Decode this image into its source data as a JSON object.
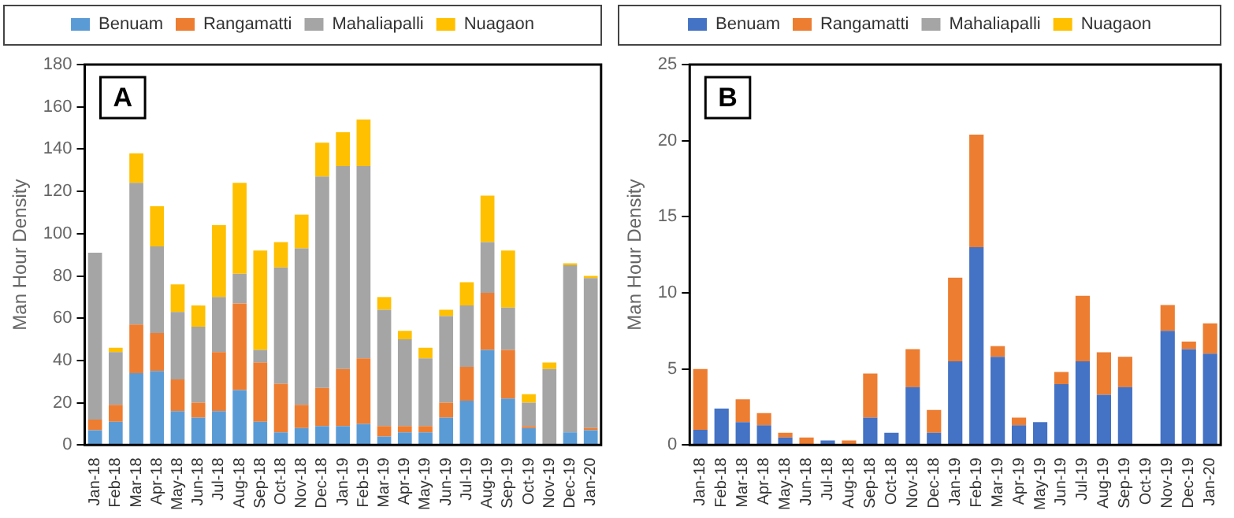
{
  "chart_data": [
    {
      "type": "bar",
      "stacked": true,
      "ylabel": "Man Hour Density",
      "annotations": [
        "A"
      ],
      "legend": "top",
      "grid": false,
      "ylim": [
        0,
        180
      ],
      "yticks": [
        0,
        20,
        40,
        60,
        80,
        100,
        120,
        140,
        160,
        180
      ],
      "categories": [
        "Jan-18",
        "Feb-18",
        "Mar-18",
        "Apr-18",
        "May-18",
        "Jun-18",
        "Jul-18",
        "Aug-18",
        "Sep-18",
        "Oct-18",
        "Nov-18",
        "Dec-18",
        "Jan-19",
        "Feb-19",
        "Mar-19",
        "Apr-19",
        "May-19",
        "Jun-19",
        "Jul-19",
        "Aug-19",
        "Sep-19",
        "Oct-19",
        "Nov-19",
        "Dec-19",
        "Jan-20"
      ],
      "series": [
        {
          "name": "Benuam",
          "color": "#5b9bd5",
          "values": [
            7,
            11,
            34,
            35,
            16,
            13,
            16,
            26,
            11,
            6,
            8,
            9,
            9,
            10,
            4,
            6,
            6,
            13,
            21,
            45,
            22,
            8,
            0,
            6,
            7
          ]
        },
        {
          "name": "Rangamatti",
          "color": "#ed7d31",
          "values": [
            5,
            8,
            23,
            18,
            15,
            7,
            28,
            41,
            28,
            23,
            11,
            18,
            27,
            31,
            5,
            3,
            3,
            7,
            16,
            27,
            23,
            1,
            0,
            0,
            1
          ]
        },
        {
          "name": "Mahaliapalli",
          "color": "#a5a5a5",
          "values": [
            79,
            25,
            67,
            41,
            32,
            36,
            26,
            14,
            6,
            55,
            74,
            100,
            96,
            91,
            55,
            41,
            32,
            41,
            29,
            24,
            20,
            11,
            36,
            79,
            71
          ]
        },
        {
          "name": "Nuagaon",
          "color": "#ffc000",
          "values": [
            0,
            2,
            14,
            19,
            13,
            10,
            34,
            43,
            47,
            12,
            16,
            16,
            16,
            22,
            6,
            4,
            5,
            3,
            11,
            22,
            27,
            4,
            3,
            1,
            1
          ]
        }
      ]
    },
    {
      "type": "bar",
      "stacked": true,
      "ylabel": "Man Hour Density",
      "annotations": [
        "B"
      ],
      "legend": "top",
      "grid": false,
      "ylim": [
        0,
        25
      ],
      "yticks": [
        0,
        5,
        10,
        15,
        20,
        25
      ],
      "categories": [
        "Jan-18",
        "Feb-18",
        "Mar-18",
        "Apr-18",
        "May-18",
        "Jun-18",
        "Jul-18",
        "Aug-18",
        "Sep-18",
        "Oct-18",
        "Nov-18",
        "Dec-18",
        "Jan-19",
        "Feb-19",
        "Mar-19",
        "Apr-19",
        "May-19",
        "Jun-19",
        "Jul-19",
        "Aug-19",
        "Sep-19",
        "Oct-19",
        "Nov-19",
        "Dec-19",
        "Jan-20"
      ],
      "series": [
        {
          "name": "Benuam",
          "color": "#4472c4",
          "values": [
            1,
            2.4,
            1.5,
            1.3,
            0.5,
            0,
            0.3,
            0,
            1.8,
            0.8,
            3.8,
            0.8,
            5.5,
            13,
            5.8,
            1.3,
            1.5,
            4,
            5.5,
            3.3,
            3.8,
            0,
            7.5,
            6.3,
            6
          ]
        },
        {
          "name": "Rangamatti",
          "color": "#ed7d31",
          "values": [
            4,
            0,
            1.5,
            0.8,
            0.3,
            0.5,
            0,
            0.3,
            2.9,
            0,
            2.5,
            1.5,
            5.5,
            7.4,
            0.7,
            0.5,
            0,
            0.8,
            4.3,
            2.8,
            2,
            0,
            1.7,
            0.5,
            2
          ]
        },
        {
          "name": "Mahaliapalli",
          "color": "#a5a5a5",
          "values": [
            0,
            0,
            0,
            0,
            0,
            0,
            0,
            0,
            0,
            0,
            0,
            0,
            0,
            0,
            0,
            0,
            0,
            0,
            0,
            0,
            0,
            0,
            0,
            0,
            0
          ]
        },
        {
          "name": "Nuagaon",
          "color": "#ffc000",
          "values": [
            0,
            0,
            0,
            0,
            0,
            0,
            0,
            0,
            0,
            0,
            0,
            0,
            0,
            0,
            0,
            0,
            0,
            0,
            0,
            0,
            0,
            0,
            0,
            0,
            0
          ]
        }
      ]
    }
  ]
}
